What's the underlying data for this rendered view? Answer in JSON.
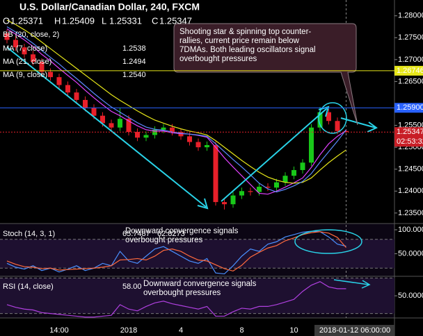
{
  "chart_data": [
    {
      "type": "candlestick",
      "title": "U.S. Dollar/Canadian Dollar, 240, FXCM",
      "ohlc_letters": [
        "O",
        "H",
        "L",
        "C"
      ],
      "categories": [
        null,
        null,
        null,
        null,
        null,
        null,
        "14:00",
        null,
        null,
        null,
        null,
        null,
        null,
        null,
        "2018",
        null,
        null,
        null,
        null,
        null,
        "4",
        null,
        null,
        null,
        null,
        null,
        null,
        "8",
        null,
        null,
        null,
        null,
        null,
        "10",
        null,
        null,
        null,
        null,
        null,
        "2018-01-12 06:00:00"
      ],
      "open": [
        1.276,
        1.2745,
        1.2728,
        1.2712,
        1.2695,
        1.2672,
        1.266,
        1.2642,
        1.2625,
        1.2608,
        1.259,
        1.2572,
        1.2555,
        1.2545,
        1.2565,
        1.2535,
        1.2522,
        1.2528,
        1.254,
        1.2545,
        1.2535,
        1.2525,
        1.2512,
        1.25,
        1.2505,
        1.2375,
        1.237,
        1.239,
        1.24,
        1.2398,
        1.241,
        1.2408,
        1.242,
        1.2435,
        1.2448,
        1.2465,
        1.2545,
        1.258,
        1.256,
        1.25371
      ],
      "high": [
        1.2768,
        1.2753,
        1.2736,
        1.272,
        1.2703,
        1.268,
        1.2668,
        1.265,
        1.2633,
        1.2616,
        1.2598,
        1.258,
        1.2563,
        1.259,
        1.2573,
        1.2543,
        1.2536,
        1.2548,
        1.2553,
        1.2553,
        1.2543,
        1.2533,
        1.252,
        1.2513,
        1.2513,
        1.2383,
        1.2398,
        1.2408,
        1.2408,
        1.2418,
        1.2418,
        1.2428,
        1.2443,
        1.2456,
        1.2473,
        1.2553,
        1.2592,
        1.2588,
        1.2568,
        1.25409
      ],
      "low": [
        1.2737,
        1.272,
        1.2704,
        1.2687,
        1.2664,
        1.2652,
        1.2634,
        1.2617,
        1.26,
        1.2582,
        1.2564,
        1.2547,
        1.2537,
        1.2537,
        1.2527,
        1.2514,
        1.2514,
        1.252,
        1.2532,
        1.2527,
        1.2517,
        1.2504,
        1.2492,
        1.2492,
        1.2367,
        1.2358,
        1.2362,
        1.2382,
        1.239,
        1.239,
        1.24,
        1.24,
        1.2412,
        1.2427,
        1.244,
        1.2457,
        1.2537,
        1.2552,
        1.253,
        1.25331
      ],
      "close": [
        1.2745,
        1.2728,
        1.2712,
        1.2695,
        1.2672,
        1.266,
        1.2642,
        1.2625,
        1.2608,
        1.259,
        1.2572,
        1.2555,
        1.2545,
        1.2565,
        1.2535,
        1.2522,
        1.2528,
        1.254,
        1.2545,
        1.2535,
        1.2525,
        1.2512,
        1.25,
        1.2505,
        1.2375,
        1.237,
        1.239,
        1.24,
        1.2398,
        1.241,
        1.2408,
        1.242,
        1.2435,
        1.2448,
        1.2465,
        1.2545,
        1.258,
        1.256,
        1.25371,
        1.25347
      ],
      "up_color": "#19c819",
      "down_color": "#e8202a",
      "indicator_legend": [
        "BB (20, close, 2)"
      ],
      "series": [
        {
          "name": "MA (7, close)",
          "color": "#e040fb",
          "values": [
            1.277,
            1.2758,
            1.2745,
            1.273,
            1.2712,
            1.2697,
            1.268,
            1.2664,
            1.2648,
            1.263,
            1.2613,
            1.2597,
            1.2582,
            1.2572,
            1.256,
            1.2549,
            1.254,
            1.2537,
            1.2537,
            1.2533,
            1.2531,
            1.253,
            1.2527,
            1.2523,
            1.25,
            1.2476,
            1.2455,
            1.2435,
            1.2415,
            1.2395,
            1.2393,
            1.24,
            1.2409,
            1.2419,
            1.243,
            1.2454,
            1.2483,
            1.2508,
            1.2525,
            1.2538
          ]
        },
        {
          "name": "MA (21, close)",
          "color": "#e6e619",
          "values": [
            1.279,
            1.278,
            1.2768,
            1.2755,
            1.274,
            1.2725,
            1.271,
            1.2695,
            1.268,
            1.2665,
            1.265,
            1.2635,
            1.262,
            1.2607,
            1.2595,
            1.2583,
            1.2572,
            1.2562,
            1.2555,
            1.2548,
            1.2542,
            1.2537,
            1.2533,
            1.2528,
            1.2515,
            1.25,
            1.2485,
            1.247,
            1.2456,
            1.2443,
            1.2432,
            1.2425,
            1.242,
            1.2418,
            1.242,
            1.243,
            1.2448,
            1.2465,
            1.248,
            1.2494
          ]
        },
        {
          "name": "MA (9, close)",
          "color": "#5b8cff",
          "last_label": "1.2540",
          "values": [
            1.2775,
            1.2763,
            1.2751,
            1.2737,
            1.2721,
            1.2705,
            1.269,
            1.2673,
            1.2657,
            1.264,
            1.2623,
            1.2607,
            1.2592,
            1.258,
            1.2568,
            1.2556,
            1.2546,
            1.2541,
            1.2539,
            1.2535,
            1.2532,
            1.253,
            1.2528,
            1.2525,
            1.2508,
            1.249,
            1.2472,
            1.2455,
            1.2437,
            1.2418,
            1.2405,
            1.2398,
            1.2404,
            1.2412,
            1.2422,
            1.244,
            1.2466,
            1.249,
            1.2514,
            1.254
          ]
        }
      ],
      "ylim": [
        1.2326,
        1.2836
      ],
      "yticks": [
        {
          "value": 1.28,
          "label": "1.28000"
        },
        {
          "value": 1.275,
          "label": "1.27500"
        },
        {
          "value": 1.27,
          "label": "1.27000"
        },
        {
          "value": 1.265,
          "label": "1.26500"
        },
        {
          "value": 1.255,
          "label": "1.25500"
        },
        {
          "value": 1.25,
          "label": "1.25000"
        },
        {
          "value": 1.245,
          "label": "1.24500"
        },
        {
          "value": 1.24,
          "label": "1.24000"
        },
        {
          "value": 1.235,
          "label": "1.23500"
        }
      ],
      "hlines": [
        {
          "value": 1.26746,
          "label": "1.26746",
          "color": "#e6e619"
        },
        {
          "value": 1.259,
          "label": "1.25900",
          "color": "#2962ff"
        }
      ],
      "countdown": "02:53:32",
      "annotation": [
        "Shooting star & spinning top counter-",
        "rallies, current price remain below",
        "7DMAs. Both leading oscillators signal",
        "overbought pressures"
      ]
    },
    {
      "type": "line",
      "title": "Stoch (14, 3, 1)",
      "series": [
        {
          "color": "#4a90ff",
          "values": [
            30,
            22,
            18,
            25,
            15,
            20,
            12,
            18,
            25,
            15,
            20,
            30,
            25,
            55,
            35,
            30,
            45,
            60,
            65,
            55,
            45,
            35,
            30,
            40,
            10,
            8,
            25,
            45,
            60,
            55,
            70,
            75,
            85,
            90,
            95,
            97,
            96,
            85,
            70,
            65.7487
          ]
        },
        {
          "color": "#ff6a3d",
          "values": [
            35,
            28,
            23,
            22,
            19,
            20,
            16,
            17,
            18,
            19,
            20,
            22,
            25,
            37,
            38,
            40,
            37,
            45,
            57,
            60,
            55,
            45,
            37,
            35,
            27,
            19,
            14,
            26,
            43,
            53,
            62,
            67,
            77,
            83,
            90,
            94,
            96,
            93,
            84,
            62.8273
          ]
        }
      ],
      "levels": [
        80,
        20
      ],
      "ylim": [
        3,
        113
      ],
      "yticks": [
        {
          "value": 100,
          "label": "100.000"
        },
        {
          "value": 50,
          "label": "50.0000"
        }
      ],
      "annotation": [
        "Downward convergence signals",
        "overbought pressures"
      ]
    },
    {
      "type": "line",
      "title": "RSI (14, close)",
      "series": [
        {
          "color": "#b040e0",
          "last_label": "58.00",
          "values": [
            40,
            37,
            35,
            34,
            31,
            30,
            29,
            28,
            27,
            26,
            26,
            27,
            28,
            40,
            35,
            33,
            38,
            42,
            44,
            41,
            39,
            37,
            35,
            38,
            27,
            27,
            32,
            36,
            35,
            38,
            38,
            40,
            43,
            46,
            55,
            62,
            66,
            60,
            58,
            58.0
          ]
        }
      ],
      "levels": [
        70,
        30
      ],
      "ylim": [
        25,
        72
      ],
      "yticks": [
        {
          "value": 50,
          "label": "50.0000"
        }
      ],
      "annotation": [
        "Downward convergence signals",
        "overbought pressures"
      ]
    }
  ]
}
